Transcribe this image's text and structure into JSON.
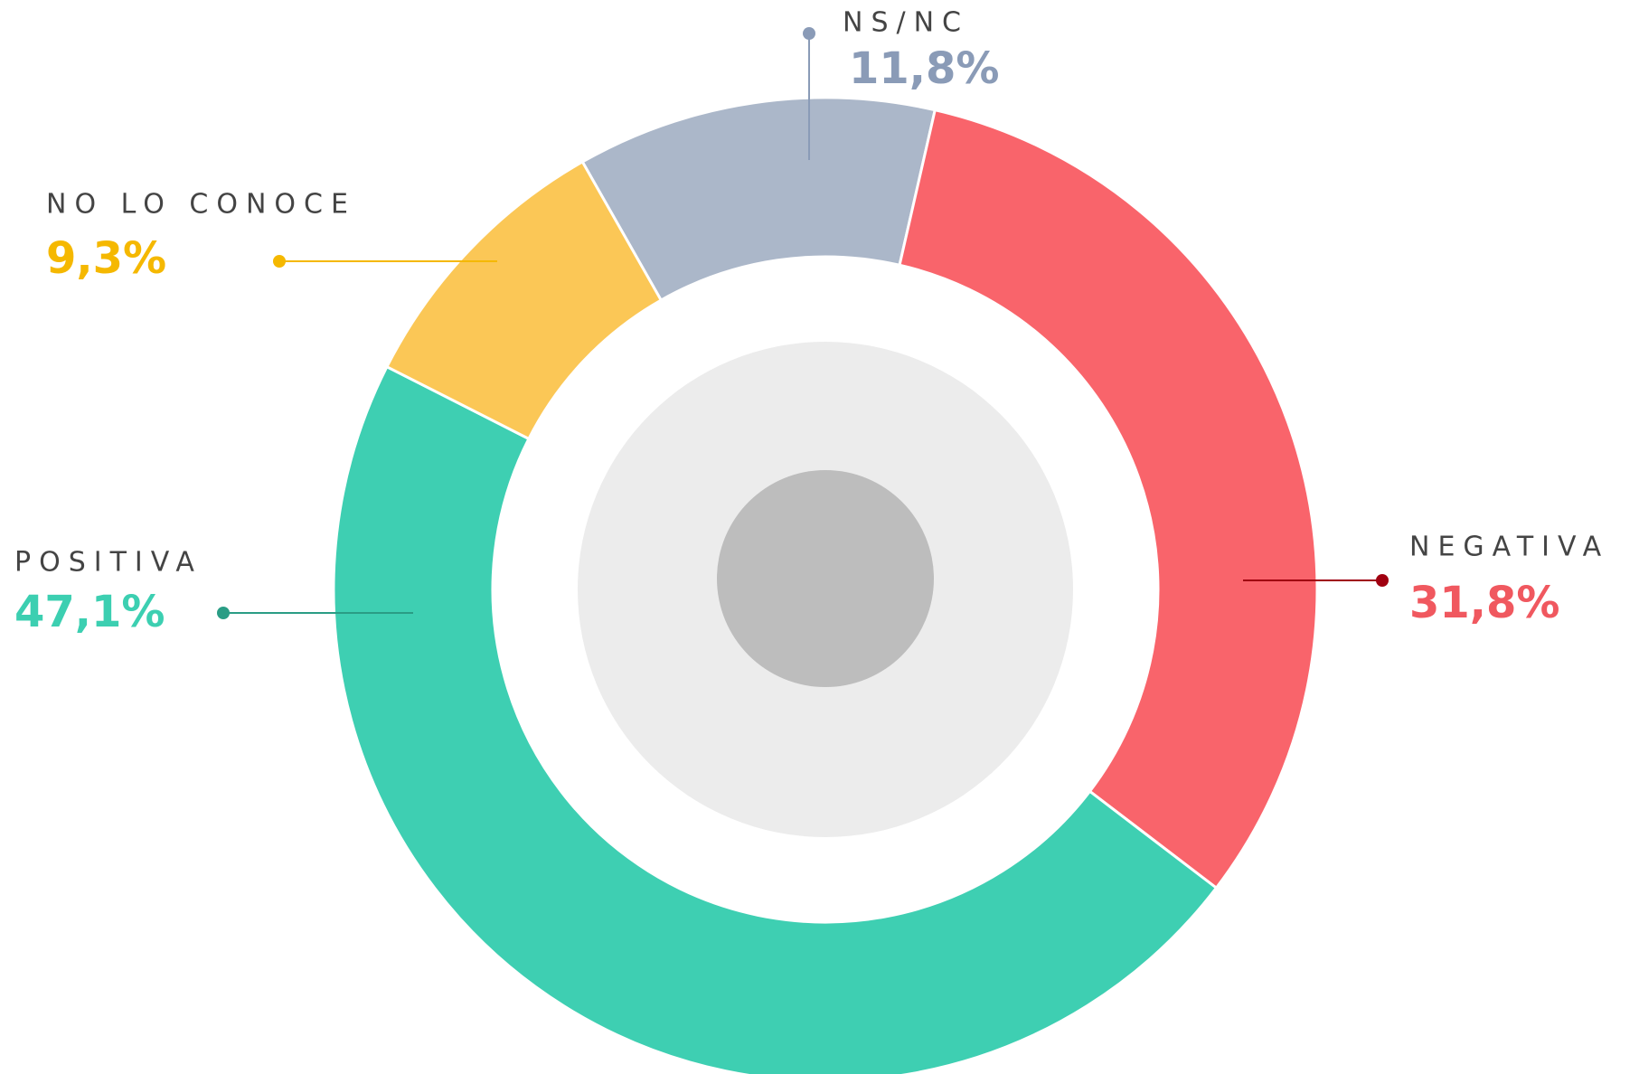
{
  "chart_data": {
    "type": "donut",
    "categories": [
      "NS/NC",
      "NEGATIVA",
      "POSITIVA",
      "NO LO CONOCE"
    ],
    "values": [
      11.8,
      31.8,
      47.1,
      9.3
    ],
    "value_labels": [
      "11,8%",
      "31,8%",
      "47,1%",
      "9,3%"
    ],
    "colors": [
      "#abb7c9",
      "#f9646b",
      "#3ecfb2",
      "#fbc756"
    ],
    "label_colors": [
      "#8a9bb7",
      "#f0585f",
      "#3ccfb1",
      "#f5b800"
    ]
  }
}
